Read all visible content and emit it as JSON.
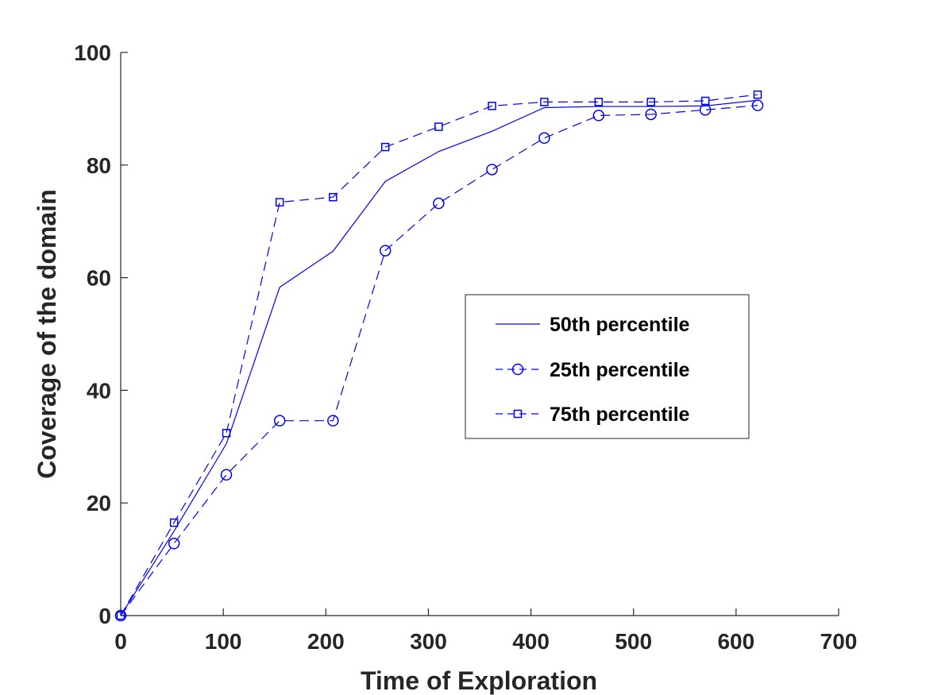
{
  "chart_data": {
    "type": "line",
    "title": "",
    "xlabel": "Time of Exploration",
    "ylabel": "Coverage of the domain",
    "xlim": [
      0,
      700
    ],
    "ylim": [
      0,
      100
    ],
    "xticks": [
      0,
      100,
      200,
      300,
      400,
      500,
      600,
      700
    ],
    "yticks": [
      0,
      20,
      40,
      60,
      80,
      100
    ],
    "xtick_labels": [
      "0",
      "100",
      "200",
      "300",
      "400",
      "500",
      "600",
      "700"
    ],
    "ytick_labels": [
      "0",
      "20",
      "40",
      "60",
      "80",
      "100"
    ],
    "grid": false,
    "legend_position": "center-right",
    "series": [
      {
        "name": "50th percentile",
        "line_style": "solid",
        "marker": "none",
        "color": "#0000FF",
        "x": [
          0,
          52,
          103,
          155,
          207,
          258,
          310,
          362,
          413,
          466,
          517,
          570,
          621
        ],
        "y": [
          0,
          15,
          30.5,
          58.3,
          64.7,
          77.1,
          82.4,
          86,
          90.2,
          90.4,
          90.4,
          90.5,
          91.5
        ]
      },
      {
        "name": "25th percentile",
        "line_style": "dashed",
        "marker": "circle",
        "color": "#0000FF",
        "x": [
          0,
          52,
          103,
          155,
          207,
          258,
          310,
          362,
          413,
          466,
          517,
          570,
          621
        ],
        "y": [
          0,
          12.8,
          25,
          34.6,
          34.6,
          64.8,
          73.2,
          79.2,
          84.8,
          88.8,
          89,
          89.8,
          90.6
        ]
      },
      {
        "name": "75th percentile",
        "line_style": "dashed",
        "marker": "square",
        "color": "#0000FF",
        "x": [
          0,
          52,
          103,
          155,
          207,
          258,
          310,
          362,
          413,
          466,
          517,
          570,
          621
        ],
        "y": [
          0,
          16.5,
          32.4,
          73.4,
          74.3,
          83.2,
          86.8,
          90.5,
          91.2,
          91.2,
          91.2,
          91.4,
          92.5
        ]
      }
    ]
  }
}
